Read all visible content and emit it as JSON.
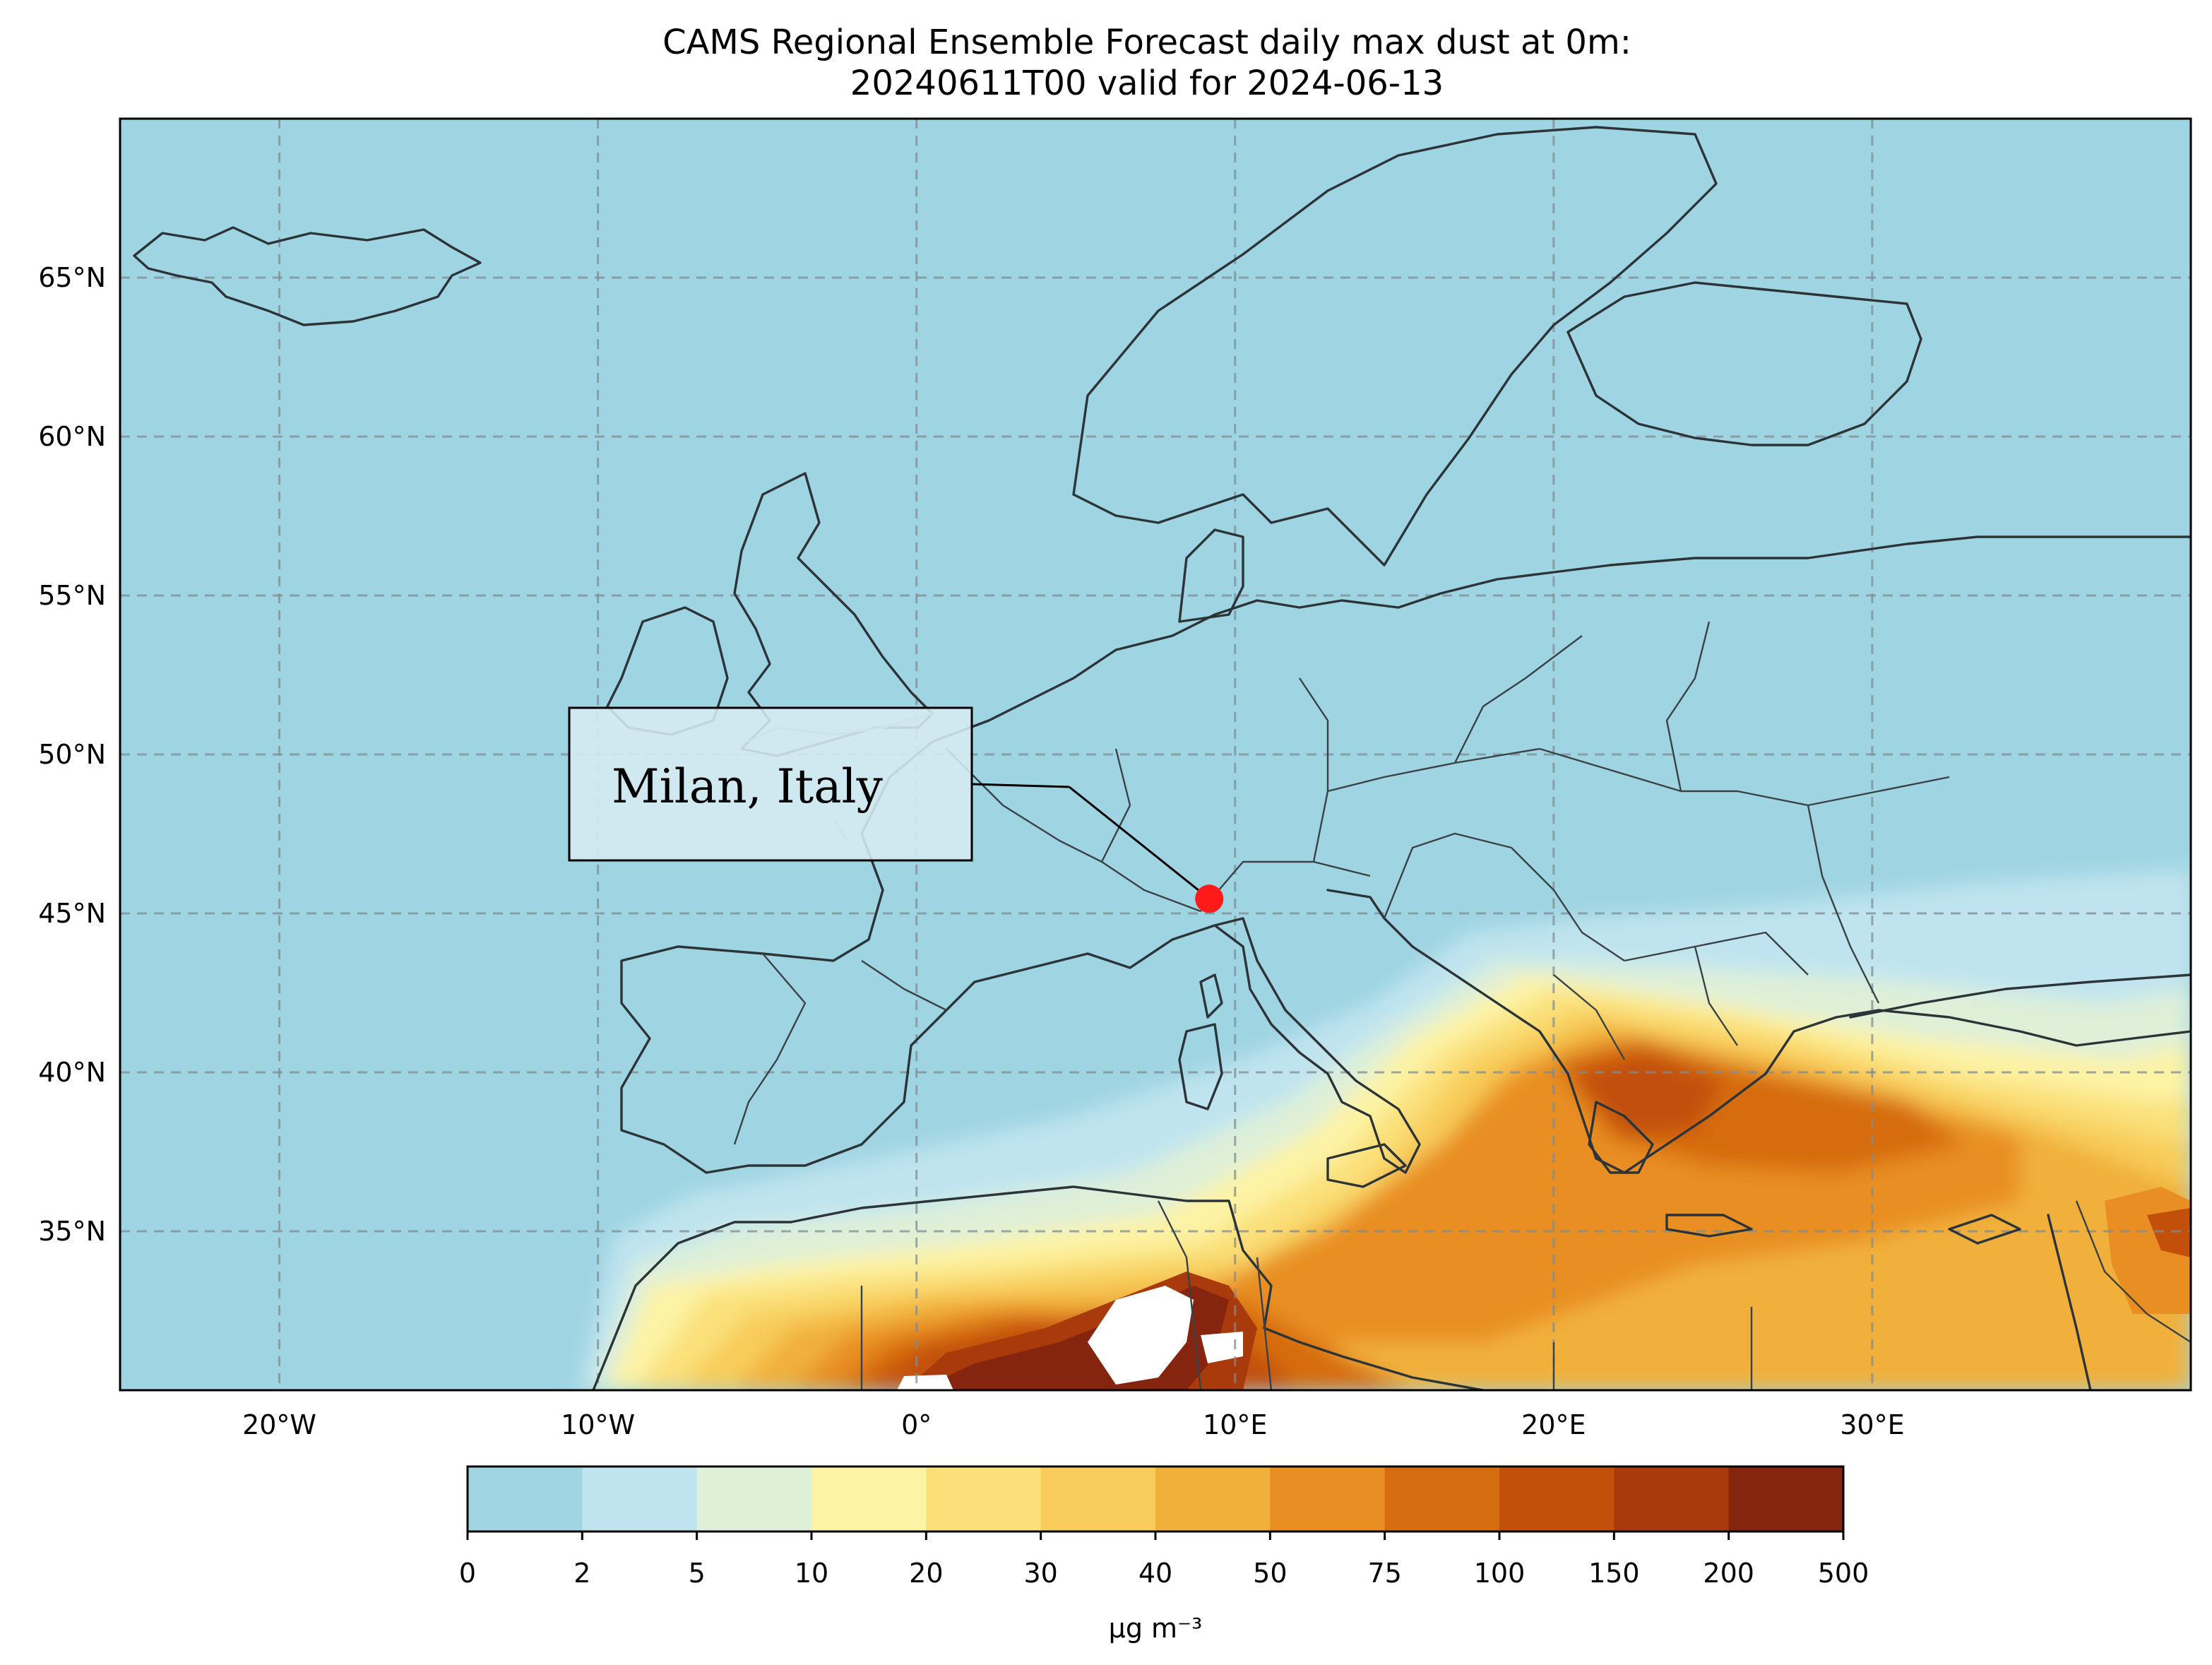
{
  "title": {
    "line1": "CAMS Regional Ensemble Forecast daily max dust at 0m:",
    "line2": "20240611T00 valid for 2024-06-13"
  },
  "map": {
    "extent_lon": [
      -25,
      40
    ],
    "extent_lat": [
      30,
      70
    ],
    "background_color": "#9fd4e2",
    "gridlines": true,
    "lon_ticks": [
      {
        "lon": -20,
        "label": "20°W"
      },
      {
        "lon": -10,
        "label": "10°W"
      },
      {
        "lon": 0,
        "label": "0°"
      },
      {
        "lon": 10,
        "label": "10°E"
      },
      {
        "lon": 20,
        "label": "20°E"
      },
      {
        "lon": 30,
        "label": "30°E"
      }
    ],
    "lat_ticks": [
      {
        "lat": 65,
        "label": "65°N"
      },
      {
        "lat": 60,
        "label": "60°N"
      },
      {
        "lat": 55,
        "label": "55°N"
      },
      {
        "lat": 50,
        "label": "50°N"
      },
      {
        "lat": 45,
        "label": "45°N"
      },
      {
        "lat": 40,
        "label": "40°N"
      },
      {
        "lat": 35,
        "label": "35°N"
      }
    ],
    "marker": {
      "lon": 9.19,
      "lat": 45.46,
      "color": "#ff1a1a"
    },
    "callout": {
      "text": "Milan, Italy"
    }
  },
  "colorbar": {
    "boundaries": [
      "0",
      "2",
      "5",
      "10",
      "20",
      "30",
      "40",
      "50",
      "75",
      "100",
      "150",
      "200",
      "500"
    ],
    "colors": [
      "#9fd4e2",
      "#bfe4ef",
      "#dff0d8",
      "#fdf3a4",
      "#fbe07a",
      "#f8cc5a",
      "#f1b03a",
      "#e88e22",
      "#d66c10",
      "#c24f0a",
      "#a83a0c",
      "#85250f"
    ],
    "unit_label": "µg m⁻³"
  }
}
